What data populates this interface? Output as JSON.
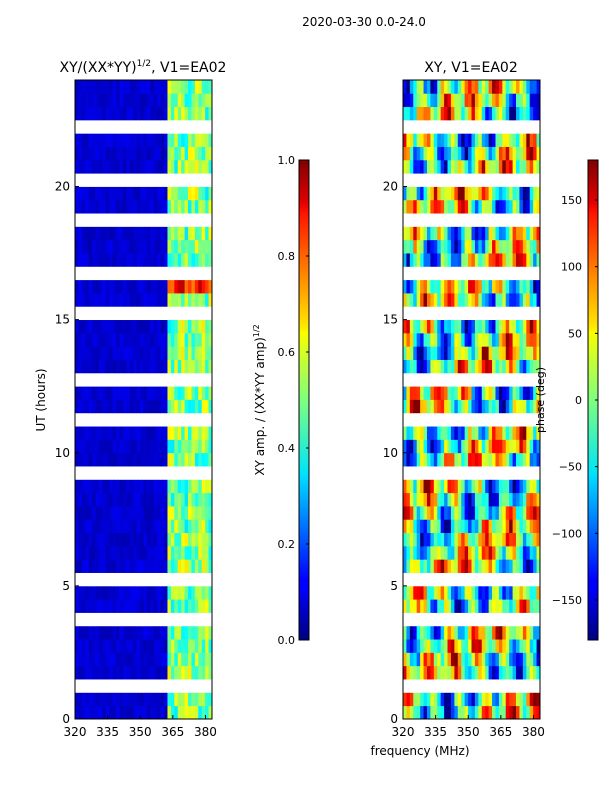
{
  "figure": {
    "suptitle": "2020-03-30 0.0-24.0",
    "xlabel_shared": "frequency (MHz)"
  },
  "chart_data": [
    {
      "type": "heatmap",
      "title_prefix": "XY/(XX*YY)",
      "title_exp": "1/2",
      "title_suffix": ", V1=EA02",
      "xlabel": "",
      "ylabel": "UT (hours)",
      "xlim": [
        320,
        383
      ],
      "ylim": [
        0,
        24
      ],
      "xticks": [
        320,
        335,
        350,
        365,
        380
      ],
      "yticks": [
        0,
        5,
        10,
        15,
        20
      ],
      "rows": 48,
      "cols": 40,
      "gap_rows": [
        2,
        7,
        10,
        18,
        22,
        25,
        30,
        33,
        37,
        40,
        44
      ],
      "colorbar": {
        "label_prefix": "XY amp. / (XX*YY amp)",
        "label_exp": "1/2",
        "range": [
          0.0,
          1.0
        ],
        "ticks": [
          "0.0",
          "0.2",
          "0.4",
          "0.6",
          "0.8",
          "1.0"
        ],
        "tick_values": [
          0.0,
          0.2,
          0.4,
          0.6,
          0.8,
          1.0
        ]
      }
    },
    {
      "type": "heatmap",
      "title": "XY, V1=EA02",
      "xlabel": "",
      "ylabel": "",
      "xlim": [
        320,
        383
      ],
      "ylim": [
        0,
        24
      ],
      "xticks": [
        320,
        335,
        350,
        365,
        380
      ],
      "yticks": [
        0,
        5,
        10,
        15,
        20
      ],
      "rows": 48,
      "cols": 40,
      "gap_rows": [
        2,
        7,
        10,
        18,
        22,
        25,
        30,
        33,
        37,
        40,
        44
      ],
      "colorbar": {
        "label": "phase (deg)",
        "range": [
          -180,
          180
        ],
        "ticks": [
          "150",
          "100",
          "50",
          "0",
          "−50",
          "−100",
          "−150"
        ],
        "tick_values": [
          150,
          100,
          50,
          0,
          -50,
          -100,
          -150
        ]
      }
    }
  ]
}
